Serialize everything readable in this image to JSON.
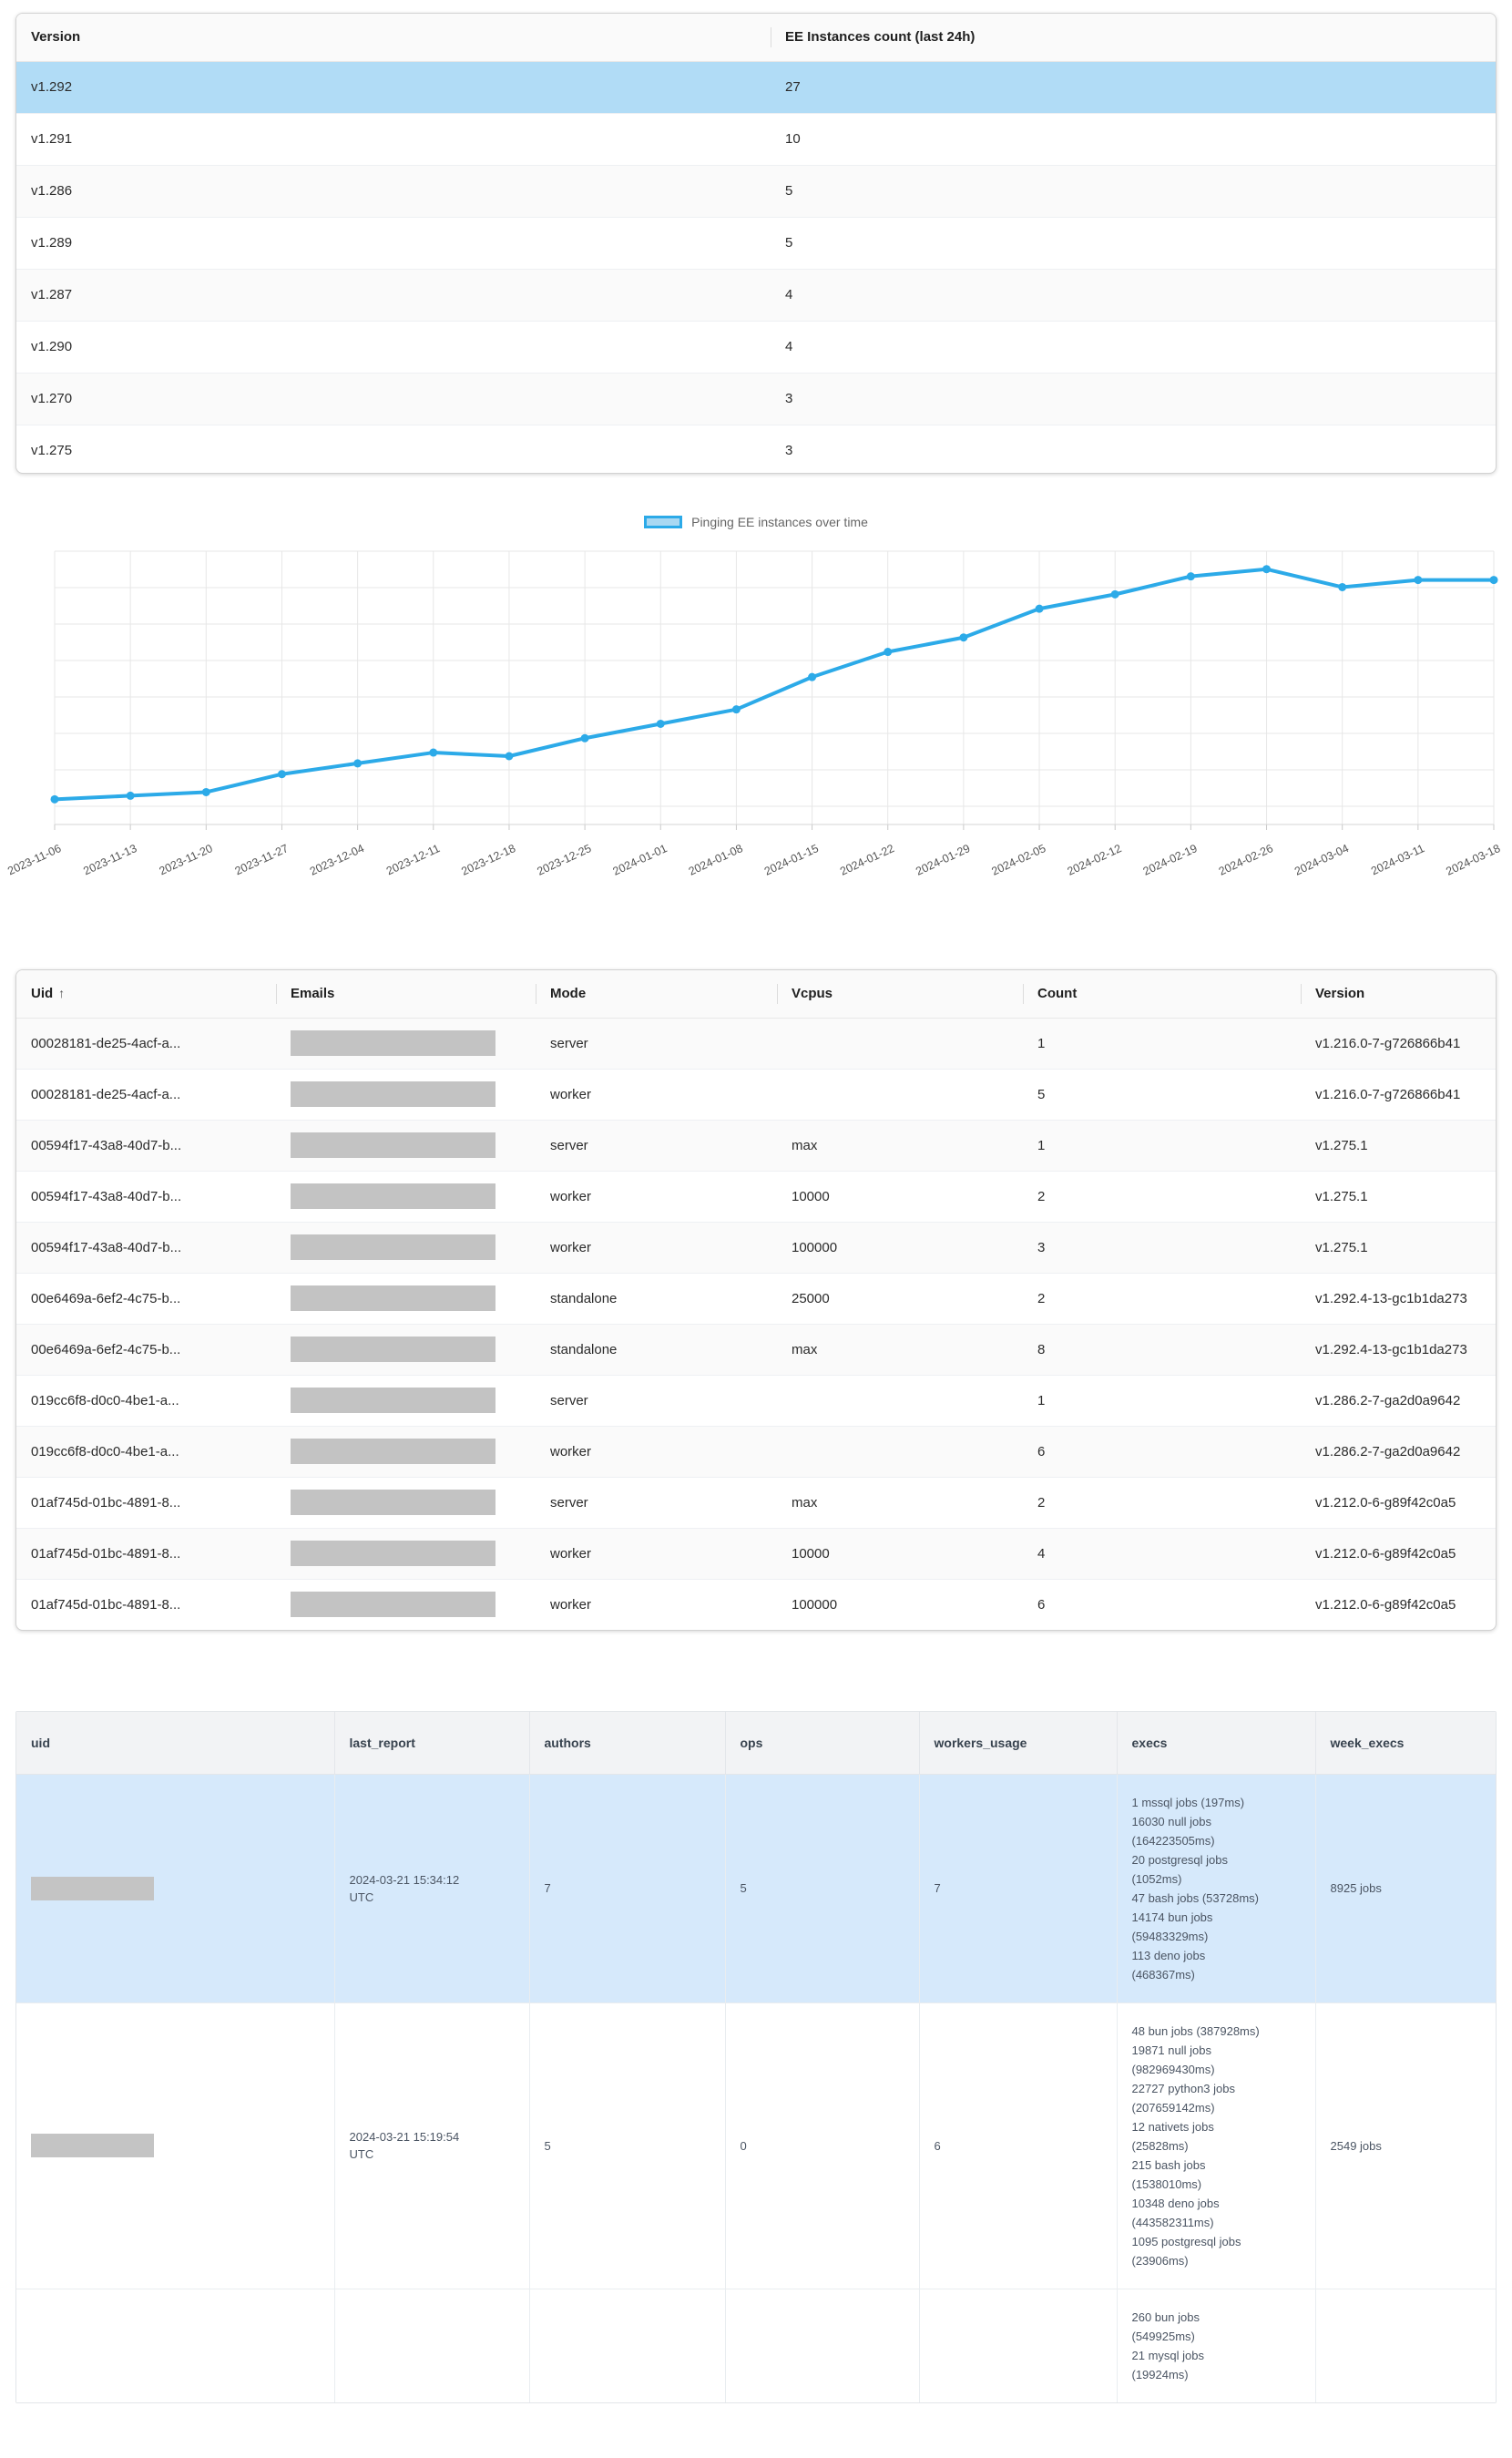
{
  "colors": {
    "line": "#2caae8",
    "legend_fill": "#a9d8f2",
    "selected_row": "#b1dcf6",
    "selected_row_light": "#d6e9fb",
    "grid": "#e7e7e7",
    "axis": "#d5d5d5",
    "tick": "#c9c9c9",
    "tick_label": "#555555"
  },
  "table1": {
    "columns": [
      "Version",
      "EE Instances count (last 24h)"
    ],
    "rows": [
      {
        "version": "v1.292",
        "count": "27",
        "selected": true
      },
      {
        "version": "v1.291",
        "count": "10"
      },
      {
        "version": "v1.286",
        "count": "5"
      },
      {
        "version": "v1.289",
        "count": "5"
      },
      {
        "version": "v1.287",
        "count": "4"
      },
      {
        "version": "v1.290",
        "count": "4"
      },
      {
        "version": "v1.270",
        "count": "3"
      },
      {
        "version": "v1.275",
        "count": "3"
      }
    ]
  },
  "chart_data": {
    "type": "line",
    "legend": "Pinging EE instances over time",
    "legend_position": "top",
    "grid": true,
    "y_axis": "unlabeled (values estimated from gridlines)",
    "ylim": [
      9,
      47
    ],
    "x": [
      "2023-11-06",
      "2023-11-13",
      "2023-11-20",
      "2023-11-27",
      "2023-12-04",
      "2023-12-11",
      "2023-12-18",
      "2023-12-25",
      "2024-01-01",
      "2024-01-08",
      "2024-01-15",
      "2024-01-22",
      "2024-01-29",
      "2024-02-05",
      "2024-02-12",
      "2024-02-19",
      "2024-02-26",
      "2024-03-04",
      "2024-03-11",
      "2024-03-18"
    ],
    "series": [
      {
        "name": "Pinging EE instances over time",
        "values": [
          12.5,
          13,
          13.5,
          16,
          17.5,
          19,
          18.5,
          21,
          23,
          25,
          29.5,
          33,
          35,
          39,
          41,
          43.5,
          44.5,
          42,
          43,
          43
        ]
      }
    ]
  },
  "table2": {
    "columns": [
      "Uid",
      "Emails",
      "Mode",
      "Vcpus",
      "Count",
      "Version"
    ],
    "sort_column": "Uid",
    "sort_icon": "↑",
    "rows": [
      {
        "uid": "00028181-de25-4acf-a...",
        "email_redacted": true,
        "mode": "server",
        "vcpus": "",
        "count": "1",
        "version": "v1.216.0-7-g726866b41"
      },
      {
        "uid": "00028181-de25-4acf-a...",
        "email_redacted": true,
        "mode": "worker",
        "vcpus": "",
        "count": "5",
        "version": "v1.216.0-7-g726866b41"
      },
      {
        "uid": "00594f17-43a8-40d7-b...",
        "email_redacted": true,
        "mode": "server",
        "vcpus": "max",
        "count": "1",
        "version": "v1.275.1"
      },
      {
        "uid": "00594f17-43a8-40d7-b...",
        "email_redacted": true,
        "mode": "worker",
        "vcpus": "10000",
        "count": "2",
        "version": "v1.275.1"
      },
      {
        "uid": "00594f17-43a8-40d7-b...",
        "email_redacted": true,
        "mode": "worker",
        "vcpus": "100000",
        "count": "3",
        "version": "v1.275.1"
      },
      {
        "uid": "00e6469a-6ef2-4c75-b...",
        "email_redacted": true,
        "mode": "standalone",
        "vcpus": "25000",
        "count": "2",
        "version": "v1.292.4-13-gc1b1da273"
      },
      {
        "uid": "00e6469a-6ef2-4c75-b...",
        "email_redacted": true,
        "mode": "standalone",
        "vcpus": "max",
        "count": "8",
        "version": "v1.292.4-13-gc1b1da273"
      },
      {
        "uid": "019cc6f8-d0c0-4be1-a...",
        "email_redacted": true,
        "mode": "server",
        "vcpus": "",
        "count": "1",
        "version": "v1.286.2-7-ga2d0a9642"
      },
      {
        "uid": "019cc6f8-d0c0-4be1-a...",
        "email_redacted": true,
        "mode": "worker",
        "vcpus": "",
        "count": "6",
        "version": "v1.286.2-7-ga2d0a9642"
      },
      {
        "uid": "01af745d-01bc-4891-8...",
        "email_redacted": true,
        "mode": "server",
        "vcpus": "max",
        "count": "2",
        "version": "v1.212.0-6-g89f42c0a5"
      },
      {
        "uid": "01af745d-01bc-4891-8...",
        "email_redacted": true,
        "mode": "worker",
        "vcpus": "10000",
        "count": "4",
        "version": "v1.212.0-6-g89f42c0a5"
      },
      {
        "uid": "01af745d-01bc-4891-8...",
        "email_redacted": true,
        "mode": "worker",
        "vcpus": "100000",
        "count": "6",
        "version": "v1.212.0-6-g89f42c0a5"
      }
    ]
  },
  "table3": {
    "columns": [
      "uid",
      "last_report",
      "authors",
      "ops",
      "workers_usage",
      "execs",
      "week_execs"
    ],
    "rows": [
      {
        "selected": true,
        "uid_redacted": true,
        "last_report": "2024-03-21 15:34:12 UTC",
        "authors": "7",
        "ops": "5",
        "workers_usage": "7",
        "execs": [
          "1 mssql jobs (197ms)",
          "16030 null jobs (164223505ms)",
          "20 postgresql jobs (1052ms)",
          "47 bash jobs (53728ms)",
          "14174 bun jobs (59483329ms)",
          "113 deno jobs (468367ms)"
        ],
        "week_execs": "8925 jobs"
      },
      {
        "uid_redacted": true,
        "last_report": "2024-03-21 15:19:54 UTC",
        "authors": "5",
        "ops": "0",
        "workers_usage": "6",
        "execs": [
          "48 bun jobs (387928ms)",
          "19871 null jobs (982969430ms)",
          "22727 python3 jobs (207659142ms)",
          "12 nativets jobs (25828ms)",
          "215 bash jobs (1538010ms)",
          "10348 deno jobs (443582311ms)",
          "1095 postgresql jobs (23906ms)"
        ],
        "week_execs": "2549 jobs"
      },
      {
        "uid_redacted": false,
        "last_report": "",
        "authors": "",
        "ops": "",
        "workers_usage": "",
        "execs": [
          "260 bun jobs (549925ms)",
          "21 mysql jobs (19924ms)"
        ],
        "week_execs": ""
      }
    ]
  }
}
